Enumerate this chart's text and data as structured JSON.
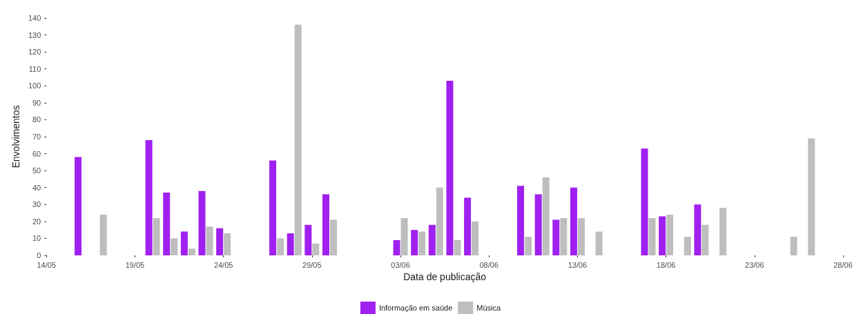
{
  "chart_data": {
    "type": "bar",
    "xlabel": "Data de publicação",
    "ylabel": "Envolvimentos",
    "x": [
      "--05-16",
      "--05-17",
      "--05-20",
      "--05-21",
      "--05-22",
      "--05-23",
      "--05-24",
      "--05-27",
      "--05-28",
      "--05-29",
      "--05-30",
      "--06-03",
      "--06-04",
      "--06-05",
      "--06-06",
      "--06-07",
      "--06-10",
      "--06-11",
      "--06-12",
      "--06-13",
      "--06-14",
      "--06-17",
      "--06-18",
      "--06-19",
      "--06-20",
      "--06-21",
      "--06-25",
      "--06-26"
    ],
    "series": [
      {
        "name": "Informação em saúde",
        "color": "#a020f0",
        "values": [
          58,
          null,
          68,
          37,
          14,
          38,
          16,
          56,
          13,
          18,
          36,
          9,
          15,
          18,
          103,
          34,
          41,
          36,
          21,
          40,
          null,
          63,
          23,
          null,
          30,
          null,
          null,
          null
        ]
      },
      {
        "name": "Música",
        "color": "#bebebe",
        "values": [
          null,
          24,
          22,
          10,
          4,
          17,
          13,
          10,
          136,
          7,
          21,
          22,
          14,
          40,
          9,
          20,
          11,
          46,
          22,
          22,
          14,
          22,
          24,
          11,
          18,
          28,
          11,
          69
        ]
      }
    ],
    "xlim": [
      "--05-14",
      "--06-28"
    ],
    "xticks": [
      {
        "value": "--05-14",
        "label": "14/05"
      },
      {
        "value": "--05-19",
        "label": "19/05"
      },
      {
        "value": "--05-24",
        "label": "24/05"
      },
      {
        "value": "--05-29",
        "label": "29/05"
      },
      {
        "value": "--06-03",
        "label": "03/06"
      },
      {
        "value": "--06-08",
        "label": "08/06"
      },
      {
        "value": "--06-13",
        "label": "13/06"
      },
      {
        "value": "--06-18",
        "label": "18/06"
      },
      {
        "value": "--06-23",
        "label": "23/06"
      },
      {
        "value": "--06-28",
        "label": "28/06"
      }
    ],
    "ylim": [
      0,
      140
    ],
    "yticks": [
      0,
      10,
      20,
      30,
      40,
      50,
      60,
      70,
      80,
      90,
      100,
      110,
      120,
      130,
      140
    ],
    "grid": false,
    "legend": "bottom"
  }
}
